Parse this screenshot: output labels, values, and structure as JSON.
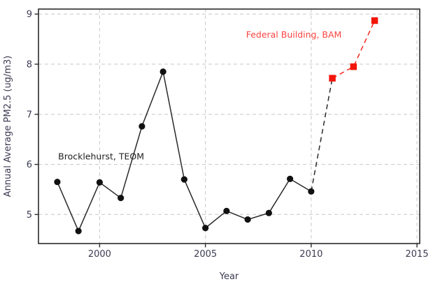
{
  "figure": {
    "background": "#ffffff",
    "axis_color": "#2b2b2b",
    "grid_color": "#cdcdcd",
    "tick_label_color": "#3b3b52",
    "axis_title_color": "#3b3b52"
  },
  "chart_data": {
    "type": "line",
    "title": "",
    "xlabel": "Year",
    "ylabel": "Annual Average PM2.5 (ug/m3)",
    "xlim": [
      1997.11,
      2015.13
    ],
    "ylim": [
      4.42,
      9.1
    ],
    "xticks": [
      2000,
      2005,
      2010,
      2015
    ],
    "yticks": [
      5,
      6,
      7,
      8,
      9
    ],
    "grid": "dashed",
    "legend_position": "none",
    "series": [
      {
        "name": "Brocklehurst, TEOM",
        "color": "#2a2a2a",
        "marker_color": "#111111",
        "line_style": "solid",
        "marker": "circle",
        "x": [
          1998,
          1999,
          2000,
          2001,
          2002,
          2003,
          2004,
          2005,
          2006,
          2007,
          2008,
          2009,
          2010
        ],
        "y": [
          5.65,
          4.67,
          5.64,
          5.33,
          6.76,
          7.85,
          5.7,
          4.73,
          5.07,
          4.9,
          5.03,
          5.71,
          5.46
        ]
      },
      {
        "name": "transition-connector",
        "color": "#2a2a2a",
        "marker_color": "#111111",
        "line_style": "dashed",
        "marker": "none",
        "x": [
          2010,
          2011
        ],
        "y": [
          5.46,
          7.72
        ]
      },
      {
        "name": "Federal Building, BAM",
        "color": "#f5271d",
        "marker_color": "#f21509",
        "line_style": "dashed",
        "marker": "square",
        "x": [
          2011,
          2012,
          2013
        ],
        "y": [
          7.72,
          7.95,
          8.87
        ]
      }
    ],
    "annotations": [
      {
        "text": "Brocklehurst, TEOM",
        "x": 1998.04,
        "y": 6.1,
        "color": "#1f1f1f",
        "anchor": "start"
      },
      {
        "text": "Federal Building, BAM",
        "x": 2006.92,
        "y": 8.53,
        "color": "#fc4440",
        "anchor": "start"
      }
    ]
  }
}
